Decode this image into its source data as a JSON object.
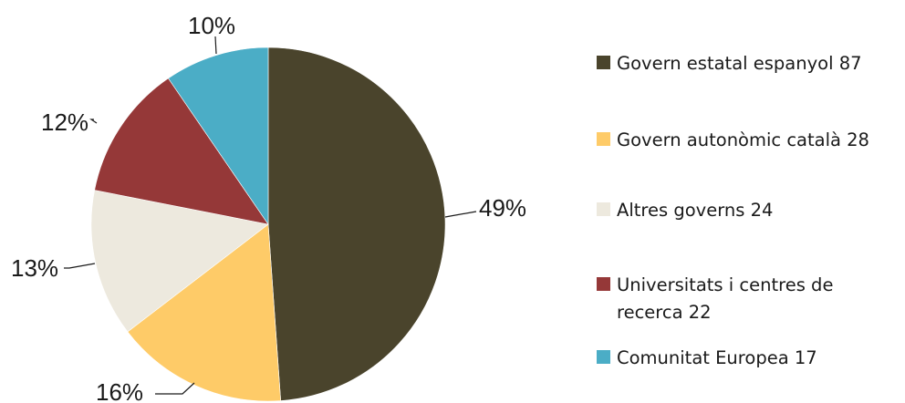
{
  "chart_data": {
    "type": "pie",
    "labels": [
      "Govern estatal espanyol 87",
      "Govern autonòmic català 28",
      "Altres governs  24",
      "Universitats i centres de recerca 22",
      "Comunitat Europea 17"
    ],
    "values": [
      87,
      28,
      24,
      22,
      17
    ],
    "percent_labels": [
      "49%",
      "16%",
      "13%",
      "12%",
      "10%"
    ],
    "colors": [
      "#4a442c",
      "#fecb68",
      "#ede9de",
      "#953838",
      "#4badc6"
    ],
    "legend_position": "right",
    "start_angle": "12 o'clock",
    "direction": "clockwise"
  }
}
